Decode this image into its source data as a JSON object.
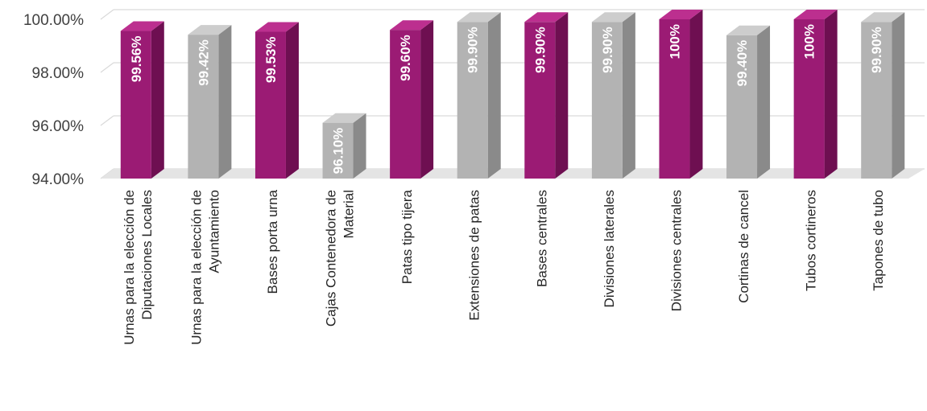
{
  "colors": {
    "magenta_front": "#9b1b74",
    "magenta_side": "#6e0f51",
    "magenta_top": "#bc2f8f",
    "gray_front": "#b3b3b3",
    "gray_side": "#8a8a8a",
    "gray_top": "#cdcdcd",
    "gridline": "#d9d9d9",
    "floor": "#e4e4e4"
  },
  "chart_data": {
    "type": "bar",
    "title": "",
    "xlabel": "",
    "ylabel": "",
    "ylim": [
      94,
      100
    ],
    "y_ticks": [
      94,
      96,
      98,
      100
    ],
    "y_tick_labels": [
      "94.00%",
      "96.00%",
      "98.00%",
      "100.00%"
    ],
    "grid": true,
    "legend": "none",
    "three_d": true,
    "categories": [
      [
        "Urnas para la elección de",
        "Diputaciones Locales"
      ],
      [
        "Urnas para la elección de",
        "Ayuntamiento"
      ],
      [
        "Bases porta urna"
      ],
      [
        "Cajas Contenedora de",
        "Material"
      ],
      [
        "Patas tipo tijera"
      ],
      [
        "Extensiones de patas"
      ],
      [
        "Bases centrales"
      ],
      [
        "Divisiones laterales"
      ],
      [
        "Divisiones centrales"
      ],
      [
        "Cortinas de cancel"
      ],
      [
        "Tubos cortineros"
      ],
      [
        "Tapones de tubo"
      ]
    ],
    "values": [
      99.56,
      99.42,
      99.53,
      96.1,
      99.6,
      99.9,
      99.9,
      99.9,
      100,
      99.4,
      100,
      99.9
    ],
    "data_labels": [
      "99.56%",
      "99.42%",
      "99.53%",
      "96.10%",
      "99.60%",
      "99.90%",
      "99.90%",
      "99.90%",
      "100%",
      "99.40%",
      "100%",
      "99.90%"
    ],
    "bar_colors": [
      "magenta",
      "gray",
      "magenta",
      "gray",
      "magenta",
      "gray",
      "magenta",
      "gray",
      "magenta",
      "gray",
      "magenta",
      "gray"
    ]
  }
}
